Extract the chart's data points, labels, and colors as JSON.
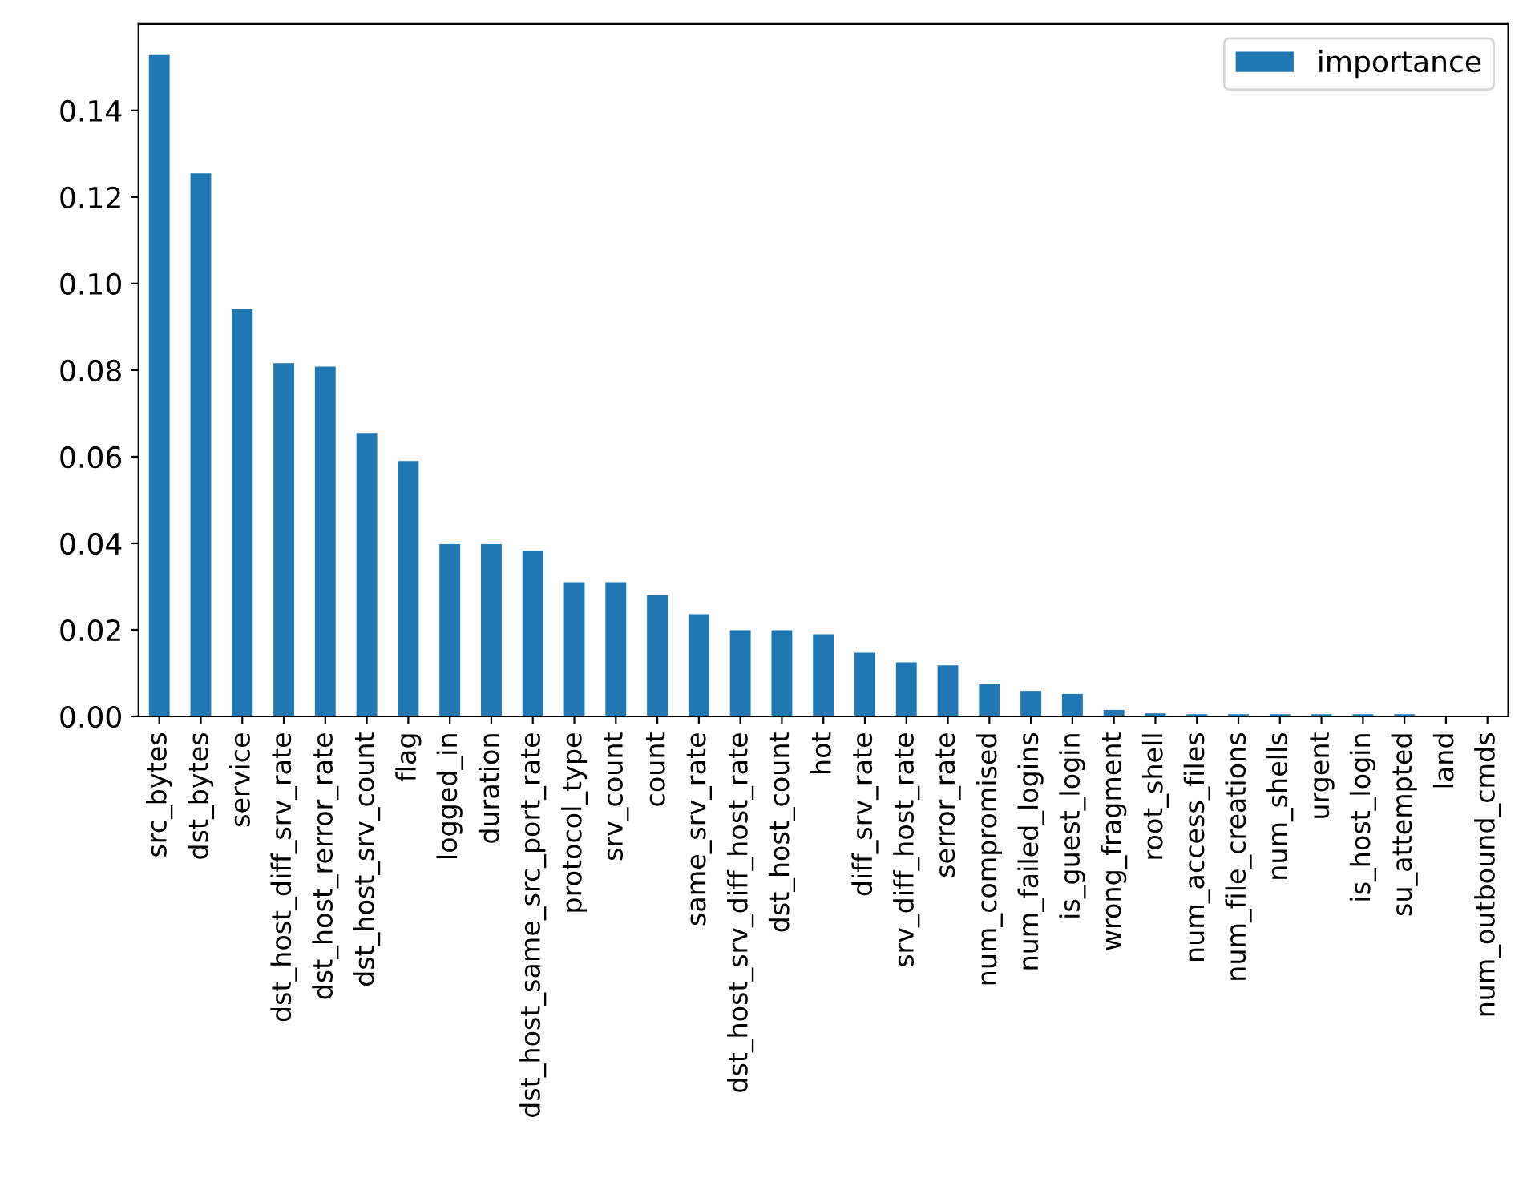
{
  "chart_data": {
    "type": "bar",
    "categories": [
      "src_bytes",
      "dst_bytes",
      "service",
      "dst_host_diff_srv_rate",
      "dst_host_rerror_rate",
      "dst_host_srv_count",
      "flag",
      "logged_in",
      "duration",
      "dst_host_same_src_port_rate",
      "protocol_type",
      "srv_count",
      "count",
      "same_srv_rate",
      "dst_host_srv_diff_host_rate",
      "dst_host_count",
      "hot",
      "diff_srv_rate",
      "srv_diff_host_rate",
      "serror_rate",
      "num_compromised",
      "num_failed_logins",
      "is_guest_login",
      "wrong_fragment",
      "root_shell",
      "num_access_files",
      "num_file_creations",
      "num_shells",
      "urgent",
      "is_host_login",
      "su_attempted",
      "land",
      "num_outbound_cmds"
    ],
    "series": [
      {
        "name": "importance",
        "color": "#1f77b4",
        "values": [
          0.1528,
          0.1255,
          0.0941,
          0.0816,
          0.0808,
          0.0655,
          0.059,
          0.0398,
          0.0398,
          0.0383,
          0.031,
          0.031,
          0.028,
          0.0236,
          0.0199,
          0.0199,
          0.019,
          0.0147,
          0.0125,
          0.0118,
          0.0074,
          0.0059,
          0.0052,
          0.0015,
          0.0007,
          0.0005,
          0.0005,
          0.0005,
          0.0005,
          0.0005,
          0.0005,
          0.0,
          0.0
        ]
      }
    ],
    "ylim": [
      0,
      0.16
    ],
    "yticks": [
      {
        "value": 0,
        "label": "0.00"
      },
      {
        "value": 0.02,
        "label": "0.02"
      },
      {
        "value": 0.04,
        "label": "0.04"
      },
      {
        "value": 0.06,
        "label": "0.06"
      },
      {
        "value": 0.08,
        "label": "0.08"
      },
      {
        "value": 0.1,
        "label": "0.10"
      },
      {
        "value": 0.12,
        "label": "0.12"
      },
      {
        "value": 0.14,
        "label": "0.14"
      }
    ],
    "legend": "top right",
    "grid": false
  }
}
